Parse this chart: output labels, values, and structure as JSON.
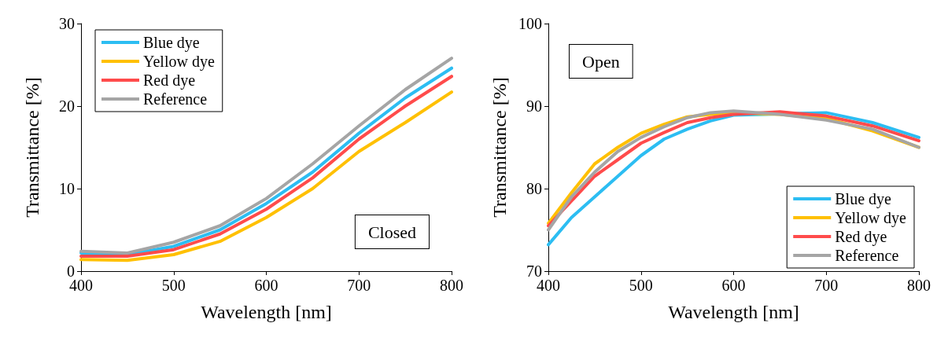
{
  "chart_data": [
    {
      "type": "line",
      "xlabel": "Wavelength [nm]",
      "ylabel": "Transmittance [%]",
      "xlim": [
        400,
        800
      ],
      "xticks": [
        400,
        500,
        600,
        700,
        800
      ],
      "ylim": [
        0,
        30
      ],
      "yticks": [
        0,
        10,
        20,
        30
      ],
      "legend": "top left",
      "grid": false,
      "marker": "none",
      "line_style": "solid",
      "annotations": [
        "Closed"
      ],
      "x": [
        400,
        450,
        500,
        550,
        600,
        650,
        700,
        750,
        800
      ],
      "series": [
        {
          "name": "Blue dye",
          "color": "#2cbdf2",
          "values": [
            2.2,
            2.0,
            3.0,
            5.0,
            8.2,
            12.0,
            16.7,
            21.0,
            24.6
          ]
        },
        {
          "name": "Yellow dye",
          "color": "#ffc000",
          "values": [
            1.4,
            1.3,
            2.0,
            3.6,
            6.5,
            10.0,
            14.5,
            18.0,
            21.7
          ]
        },
        {
          "name": "Red dye",
          "color": "#ff4b4b",
          "values": [
            1.8,
            1.8,
            2.6,
            4.5,
            7.5,
            11.3,
            16.0,
            20.0,
            23.6
          ]
        },
        {
          "name": "Reference",
          "color": "#a5a5a5",
          "values": [
            2.4,
            2.2,
            3.5,
            5.5,
            8.8,
            13.0,
            17.6,
            22.0,
            25.8
          ]
        }
      ]
    },
    {
      "type": "line",
      "xlabel": "Wavelength [nm]",
      "ylabel": "Transmittance [%]",
      "xlim": [
        400,
        800
      ],
      "xticks": [
        400,
        500,
        600,
        700,
        800
      ],
      "ylim": [
        70,
        100
      ],
      "yticks": [
        70,
        80,
        90,
        100
      ],
      "legend": "bottom right",
      "grid": false,
      "marker": "none",
      "line_style": "solid",
      "annotations": [
        "Open"
      ],
      "x": [
        400,
        425,
        450,
        475,
        500,
        525,
        550,
        575,
        600,
        650,
        700,
        750,
        800
      ],
      "series": [
        {
          "name": "Blue dye",
          "color": "#2cbdf2",
          "values": [
            73.2,
            76.5,
            79.0,
            81.5,
            84.0,
            86.0,
            87.2,
            88.2,
            88.9,
            null,
            89.2,
            88.0,
            86.2
          ]
        },
        {
          "name": "Yellow dye",
          "color": "#ffc000",
          "values": [
            75.8,
            79.5,
            83.0,
            85.0,
            86.7,
            87.8,
            88.7,
            89.0,
            89.2,
            89.0,
            88.5,
            87.0,
            85.0
          ]
        },
        {
          "name": "Red dye",
          "color": "#ff4b4b",
          "values": [
            75.5,
            78.5,
            81.5,
            83.5,
            85.5,
            86.8,
            88.0,
            88.6,
            89.0,
            89.3,
            88.8,
            87.6,
            85.8
          ]
        },
        {
          "name": "Reference",
          "color": "#a5a5a5",
          "values": [
            75.0,
            79.0,
            82.0,
            84.5,
            86.2,
            87.5,
            88.6,
            89.2,
            89.4,
            89.0,
            88.3,
            87.2,
            85.0
          ]
        }
      ]
    }
  ]
}
